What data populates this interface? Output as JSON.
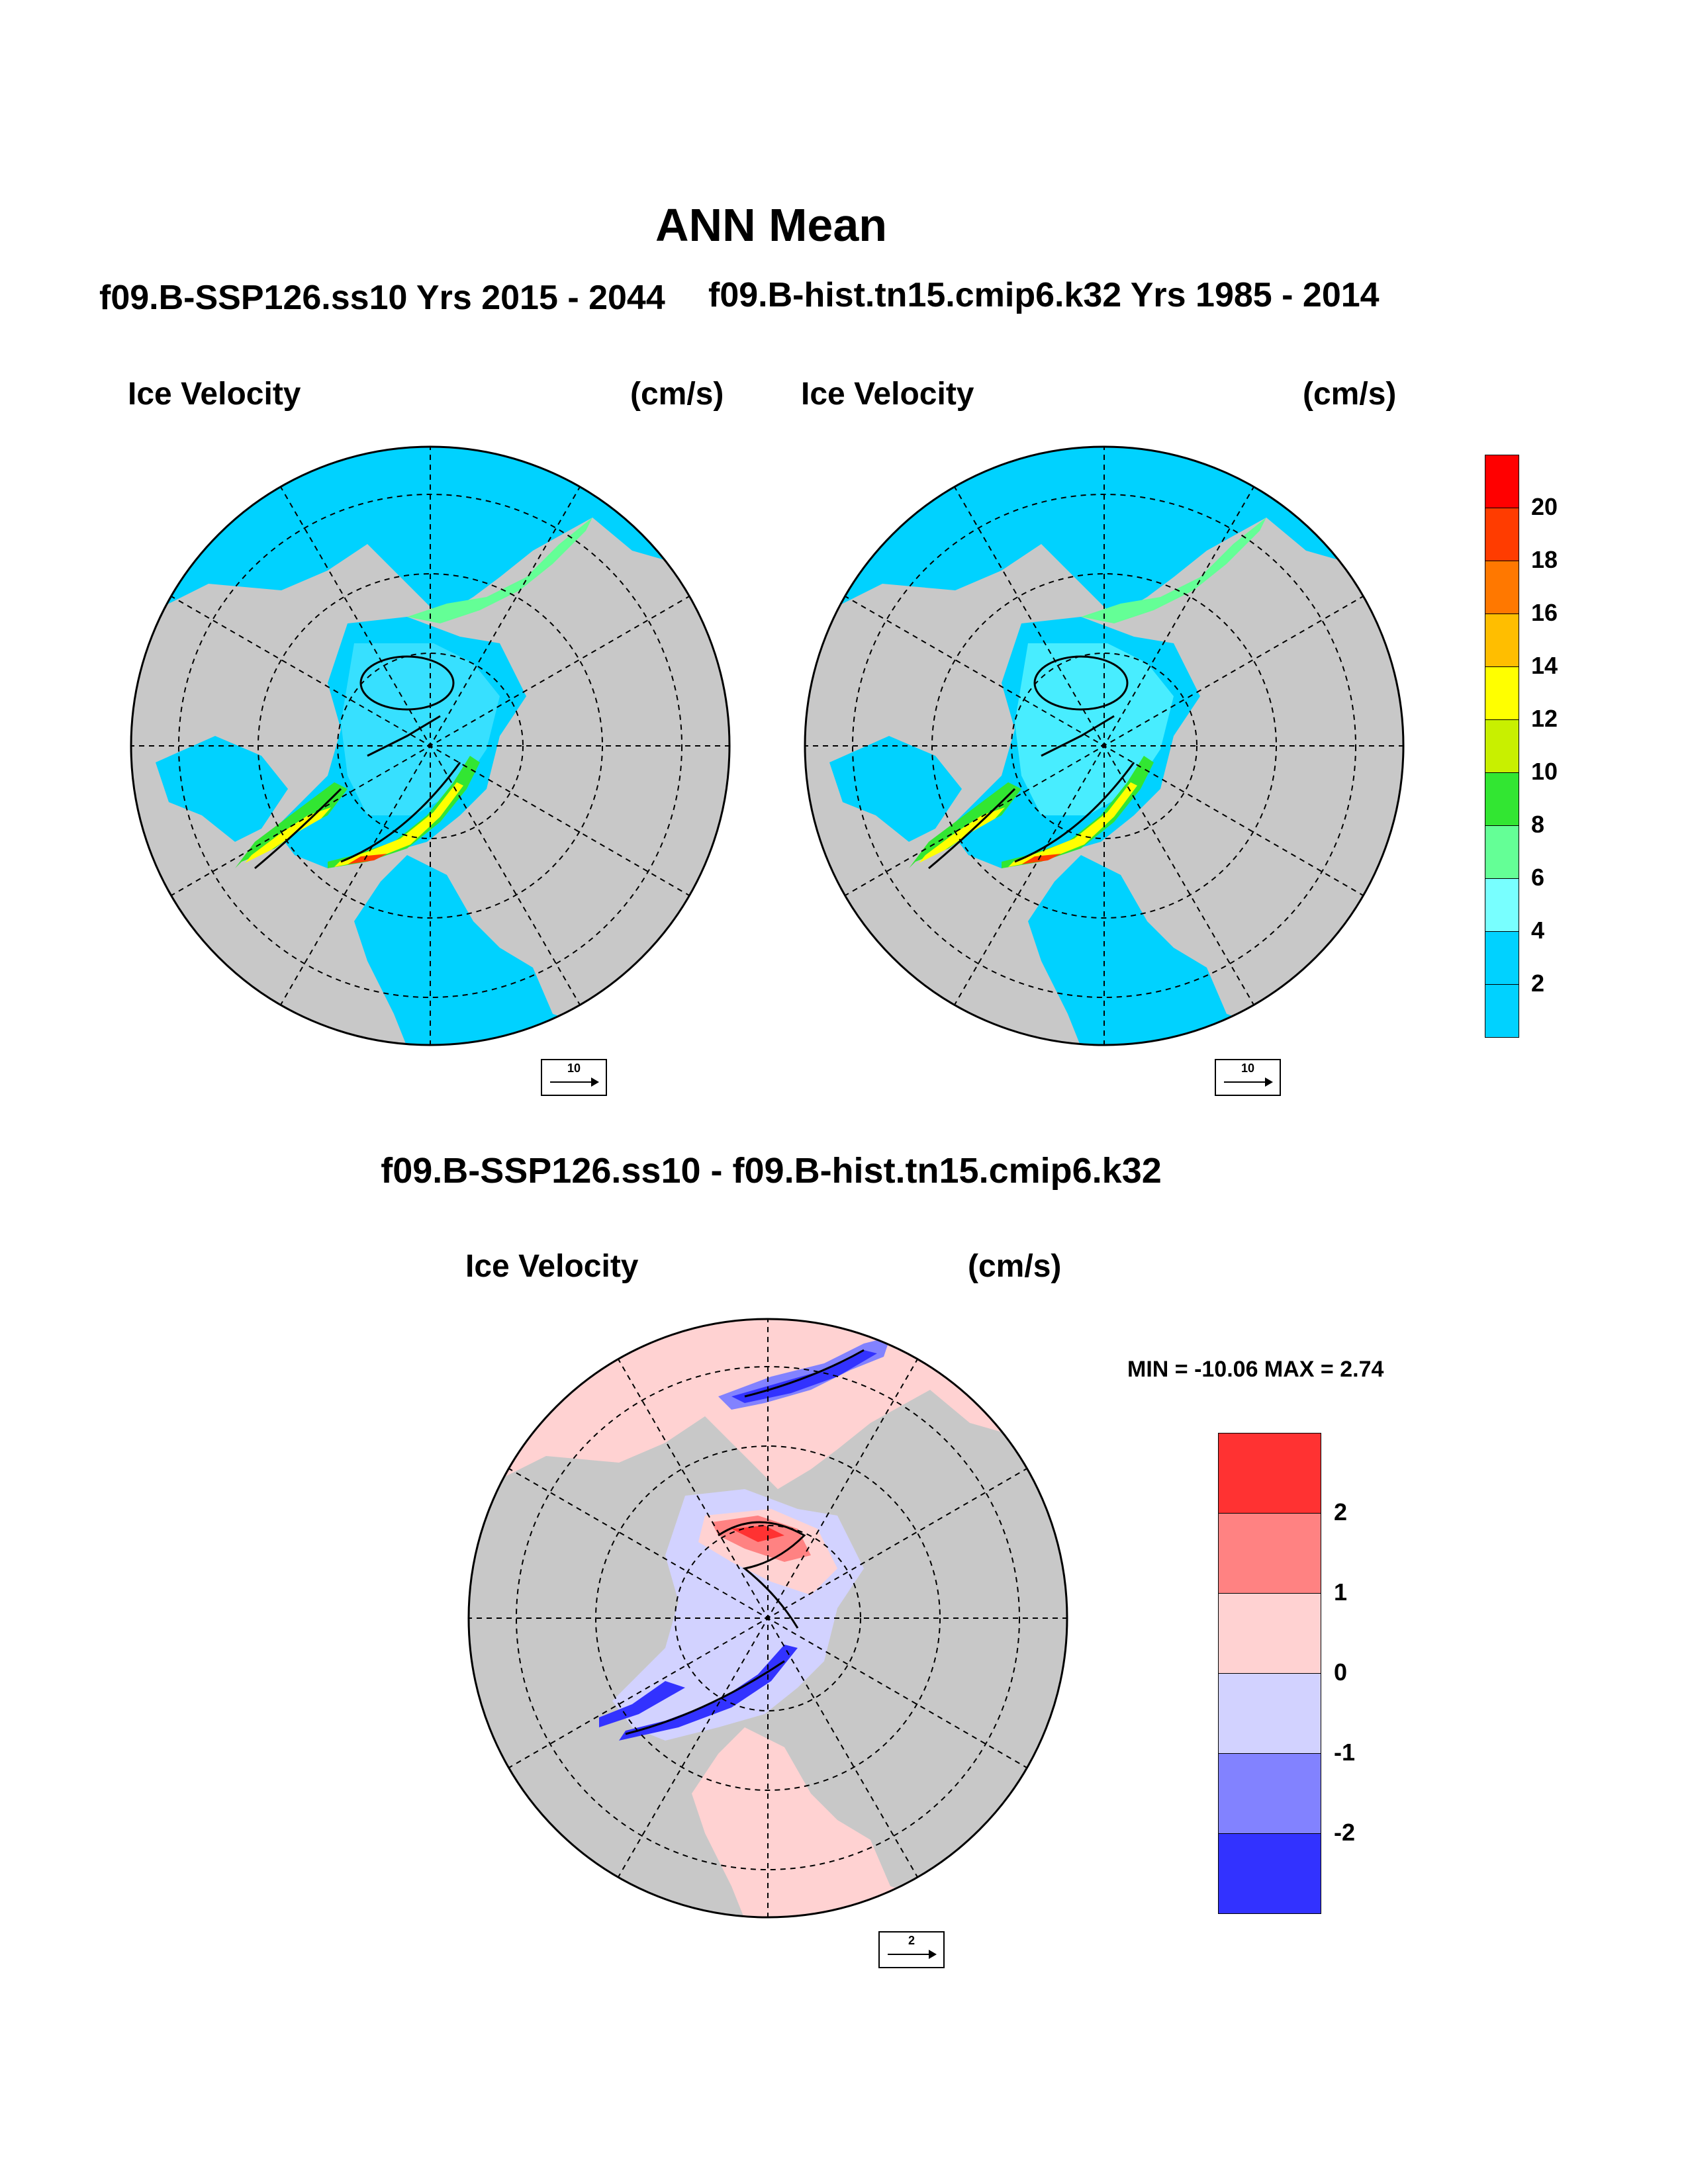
{
  "title": "ANN Mean",
  "panel1": {
    "run": "f09.B-SSP126.ss10  Yrs 2015 - 2044",
    "field": "Ice Velocity",
    "units": "(cm/s)",
    "ref_vector": "10"
  },
  "panel2": {
    "run": "f09.B-hist.tn15.cmip6.k32  Yrs 1985 - 2014",
    "field": "Ice Velocity",
    "units": "(cm/s)",
    "ref_vector": "10"
  },
  "diff": {
    "title": "f09.B-SSP126.ss10 - f09.B-hist.tn15.cmip6.k32",
    "field": "Ice Velocity",
    "units": "(cm/s)",
    "minmax": "MIN = -10.06 MAX =   2.74",
    "ref_vector": "2"
  },
  "colorbar_main": {
    "labels": [
      "20",
      "18",
      "16",
      "14",
      "12",
      "10",
      "8",
      "6",
      "4",
      "2"
    ],
    "colors": [
      "#ff0000",
      "#ff3c00",
      "#ff7800",
      "#ffbe00",
      "#ffff00",
      "#c8f000",
      "#32e632",
      "#64ff96",
      "#78ffff",
      "#00d2ff",
      "#00d2ff"
    ]
  },
  "colorbar_diff": {
    "labels": [
      "2",
      "1",
      "0",
      "-1",
      "-2"
    ],
    "colors": [
      "#ff3232",
      "#ff8282",
      "#ffd2d2",
      "#d2d2ff",
      "#8282ff",
      "#3232ff"
    ]
  },
  "map_colors": {
    "land": "#c8c8c8",
    "ocean_low": "#00d2ff",
    "diff_bg": "#ffd2d2"
  }
}
